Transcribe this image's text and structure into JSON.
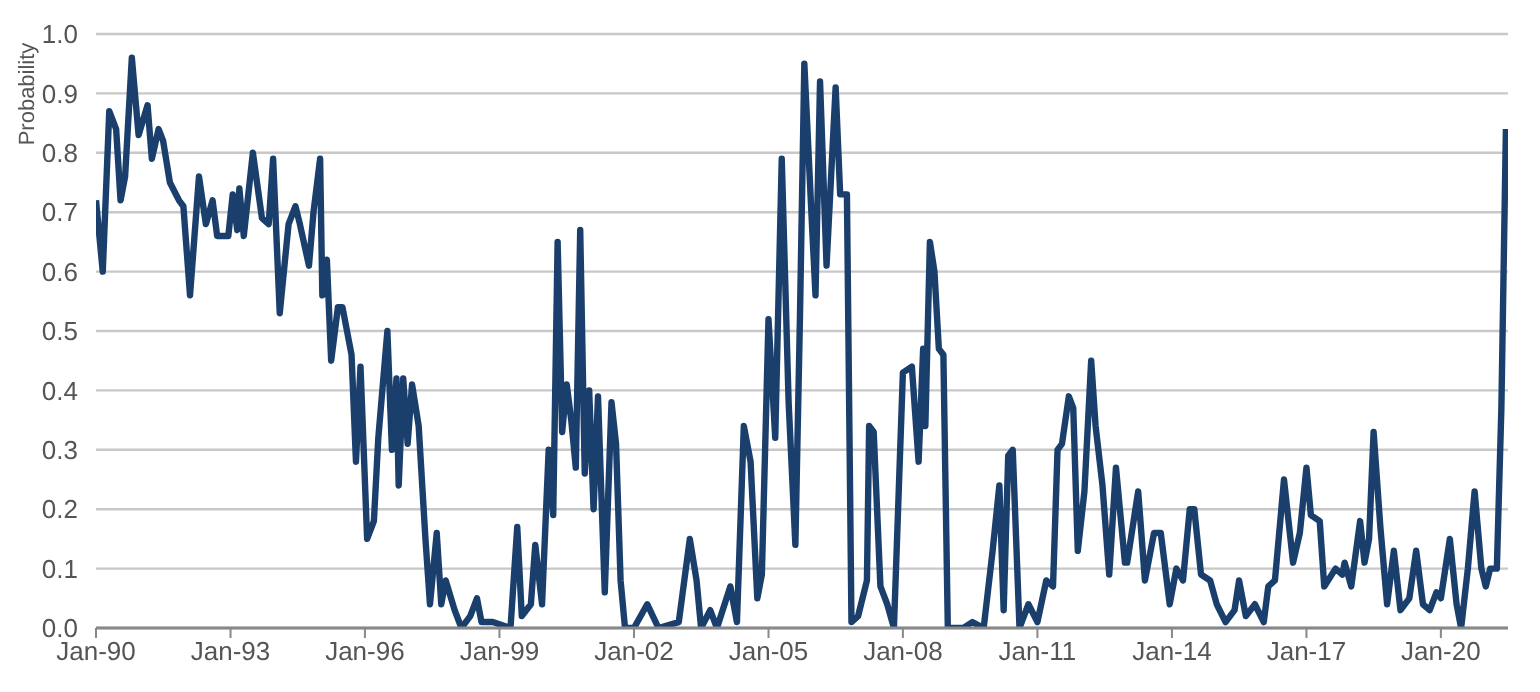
{
  "chart_data": {
    "type": "line",
    "ylabel": "Probability",
    "x": [
      "1990-01-01",
      "1990-02-25",
      "1990-04-19",
      "1990-06-14",
      "1990-07-20",
      "1990-08-26",
      "1990-10-20",
      "1990-12-14",
      "1991-02-25",
      "1991-04-01",
      "1991-05-26",
      "1991-07-02",
      "1991-08-26",
      "1991-11-08",
      "1991-12-14",
      "1992-02-06",
      "1992-04-19",
      "1992-06-14",
      "1992-08-08",
      "1992-09-14",
      "1992-12-14",
      "1993-01-19",
      "1993-02-25",
      "1993-03-14",
      "1993-04-19",
      "1993-07-02",
      "1993-09-14",
      "1993-11-08",
      "1993-12-14",
      "1994-02-06",
      "1994-04-19",
      "1994-06-14",
      "1994-07-20",
      "1994-10-02",
      "1994-11-08",
      "1995-01-01",
      "1995-01-19",
      "1995-02-25",
      "1995-04-01",
      "1995-05-26",
      "1995-07-02",
      "1995-09-14",
      "1995-10-20",
      "1995-11-26",
      "1996-01-19",
      "1996-03-14",
      "1996-04-19",
      "1996-07-02",
      "1996-08-08",
      "1996-09-14",
      "1996-10-02",
      "1996-11-08",
      "1996-12-14",
      "1997-01-19",
      "1997-03-14",
      "1997-05-08",
      "1997-06-14",
      "1997-08-08",
      "1997-09-14",
      "1997-10-20",
      "1998-01-01",
      "1998-02-25",
      "1998-05-08",
      "1998-07-02",
      "1998-08-08",
      "1998-11-08",
      "1999-04-01",
      "1999-05-26",
      "1999-07-02",
      "1999-09-14",
      "1999-10-20",
      "1999-12-14",
      "2000-02-06",
      "2000-03-14",
      "2000-04-19",
      "2000-05-26",
      "2000-07-02",
      "2000-08-08",
      "2000-09-14",
      "2000-10-20",
      "2000-11-26",
      "2001-01-01",
      "2001-02-06",
      "2001-03-14",
      "2001-05-08",
      "2001-07-02",
      "2001-08-08",
      "2001-09-14",
      "2001-10-20",
      "2002-01-01",
      "2002-04-19",
      "2002-07-20",
      "2003-01-01",
      "2003-04-01",
      "2003-05-26",
      "2003-07-02",
      "2003-09-14",
      "2003-11-08",
      "2004-02-25",
      "2004-04-19",
      "2004-06-14",
      "2004-08-08",
      "2004-10-02",
      "2004-11-08",
      "2005-01-01",
      "2005-02-25",
      "2005-04-19",
      "2005-06-14",
      "2005-08-08",
      "2005-09-14",
      "2005-10-20",
      "2005-12-14",
      "2006-01-19",
      "2006-02-25",
      "2006-04-19",
      "2006-07-02",
      "2006-08-08",
      "2006-10-02",
      "2006-11-08",
      "2007-01-01",
      "2007-03-14",
      "2007-04-01",
      "2007-05-08",
      "2007-07-02",
      "2007-08-26",
      "2007-10-20",
      "2008-01-01",
      "2008-03-14",
      "2008-05-08",
      "2008-06-14",
      "2008-07-02",
      "2008-08-08",
      "2008-09-14",
      "2008-10-20",
      "2008-11-26",
      "2009-01-01",
      "2009-05-08",
      "2009-07-20",
      "2009-10-20",
      "2010-01-01",
      "2010-02-25",
      "2010-04-01",
      "2010-05-08",
      "2010-06-14",
      "2010-08-08",
      "2010-10-20",
      "2011-01-01",
      "2011-03-14",
      "2011-05-08",
      "2011-06-14",
      "2011-07-20",
      "2011-09-14",
      "2011-10-20",
      "2011-11-26",
      "2012-01-19",
      "2012-03-14",
      "2012-04-19",
      "2012-06-14",
      "2012-08-08",
      "2012-10-02",
      "2012-12-14",
      "2013-01-01",
      "2013-04-01",
      "2013-05-26",
      "2013-08-08",
      "2013-10-02",
      "2013-12-14",
      "2014-02-06",
      "2014-04-01",
      "2014-05-26",
      "2014-07-02",
      "2014-08-26",
      "2014-11-08",
      "2015-01-01",
      "2015-03-14",
      "2015-05-26",
      "2015-07-02",
      "2015-08-26",
      "2015-11-08",
      "2016-01-19",
      "2016-02-25",
      "2016-04-19",
      "2016-07-02",
      "2016-09-14",
      "2016-11-08",
      "2017-01-01",
      "2017-02-06",
      "2017-04-19",
      "2017-05-26",
      "2017-08-26",
      "2017-10-20",
      "2017-11-08",
      "2018-01-01",
      "2018-03-14",
      "2018-04-19",
      "2018-05-26",
      "2018-07-02",
      "2018-08-26",
      "2018-10-20",
      "2018-12-14",
      "2019-02-06",
      "2019-04-19",
      "2019-06-14",
      "2019-08-08",
      "2019-10-02",
      "2019-11-26",
      "2020-01-01",
      "2020-03-14",
      "2020-05-08",
      "2020-06-14",
      "2020-08-08",
      "2020-10-02",
      "2020-11-26",
      "2021-01-01",
      "2021-02-06",
      "2021-04-01",
      "2021-05-08",
      "2021-06-14"
    ],
    "series": [
      {
        "color": "#1b3f6c",
        "values": [
          0.72,
          0.6,
          0.87,
          0.84,
          0.72,
          0.76,
          0.96,
          0.83,
          0.88,
          0.79,
          0.84,
          0.82,
          0.75,
          0.72,
          0.71,
          0.56,
          0.76,
          0.68,
          0.72,
          0.66,
          0.66,
          0.73,
          0.67,
          0.74,
          0.66,
          0.8,
          0.69,
          0.68,
          0.79,
          0.53,
          0.68,
          0.71,
          0.68,
          0.61,
          0.7,
          0.79,
          0.56,
          0.62,
          0.45,
          0.54,
          0.54,
          0.46,
          0.28,
          0.44,
          0.15,
          0.18,
          0.32,
          0.5,
          0.3,
          0.42,
          0.24,
          0.42,
          0.31,
          0.41,
          0.34,
          0.15,
          0.04,
          0.16,
          0.04,
          0.08,
          0.03,
          0.0,
          0.02,
          0.05,
          0.01,
          0.01,
          0.0,
          0.17,
          0.02,
          0.04,
          0.14,
          0.04,
          0.3,
          0.19,
          0.65,
          0.33,
          0.41,
          0.35,
          0.27,
          0.67,
          0.26,
          0.4,
          0.2,
          0.39,
          0.06,
          0.38,
          0.31,
          0.08,
          0.0,
          0.0,
          0.04,
          0.0,
          0.01,
          0.15,
          0.08,
          0.0,
          0.03,
          0.0,
          0.07,
          0.01,
          0.34,
          0.28,
          0.05,
          0.09,
          0.52,
          0.32,
          0.79,
          0.38,
          0.14,
          0.52,
          0.95,
          0.71,
          0.56,
          0.92,
          0.61,
          0.91,
          0.73,
          0.73,
          0.01,
          0.02,
          0.08,
          0.34,
          0.33,
          0.07,
          0.04,
          0.0,
          0.43,
          0.44,
          0.28,
          0.47,
          0.34,
          0.65,
          0.6,
          0.47,
          0.46,
          0.0,
          0.0,
          0.01,
          0.0,
          0.13,
          0.24,
          0.03,
          0.29,
          0.3,
          0.0,
          0.04,
          0.01,
          0.08,
          0.07,
          0.3,
          0.31,
          0.39,
          0.37,
          0.13,
          0.23,
          0.45,
          0.34,
          0.24,
          0.09,
          0.27,
          0.11,
          0.11,
          0.23,
          0.08,
          0.16,
          0.16,
          0.04,
          0.1,
          0.08,
          0.2,
          0.2,
          0.09,
          0.08,
          0.04,
          0.01,
          0.03,
          0.08,
          0.02,
          0.04,
          0.01,
          0.07,
          0.08,
          0.25,
          0.11,
          0.16,
          0.27,
          0.19,
          0.18,
          0.07,
          0.1,
          0.09,
          0.11,
          0.07,
          0.18,
          0.11,
          0.15,
          0.33,
          0.17,
          0.04,
          0.13,
          0.03,
          0.05,
          0.13,
          0.04,
          0.03,
          0.06,
          0.05,
          0.15,
          0.04,
          0.0,
          0.1,
          0.23,
          0.1,
          0.07,
          0.1,
          0.1,
          0.37,
          0.84
        ]
      }
    ],
    "xlim": [
      "1990-01",
      "2021-07"
    ],
    "xticks": [
      {
        "value": "1990-01",
        "label": "Jan-90"
      },
      {
        "value": "1993-01",
        "label": "Jan-93"
      },
      {
        "value": "1996-01",
        "label": "Jan-96"
      },
      {
        "value": "1999-01",
        "label": "Jan-99"
      },
      {
        "value": "2002-01",
        "label": "Jan-02"
      },
      {
        "value": "2005-01",
        "label": "Jan-05"
      },
      {
        "value": "2008-01",
        "label": "Jan-08"
      },
      {
        "value": "2011-01",
        "label": "Jan-11"
      },
      {
        "value": "2014-01",
        "label": "Jan-14"
      },
      {
        "value": "2017-01",
        "label": "Jan-17"
      },
      {
        "value": "2020-01",
        "label": "Jan-20"
      }
    ],
    "ylim": [
      0,
      1
    ],
    "yticks": [
      {
        "value": 0,
        "label": "0.0"
      },
      {
        "value": 0.1,
        "label": "0.1"
      },
      {
        "value": 0.2,
        "label": "0.2"
      },
      {
        "value": 0.3,
        "label": "0.3"
      },
      {
        "value": 0.4,
        "label": "0.4"
      },
      {
        "value": 0.5,
        "label": "0.5"
      },
      {
        "value": 0.6,
        "label": "0.6"
      },
      {
        "value": 0.7,
        "label": "0.7"
      },
      {
        "value": 0.8,
        "label": "0.8"
      },
      {
        "value": 0.9,
        "label": "0.9"
      },
      {
        "value": 1.0,
        "label": "1.0"
      }
    ],
    "grid": "y",
    "legend": false,
    "marker": "none",
    "line_style": "solid"
  }
}
